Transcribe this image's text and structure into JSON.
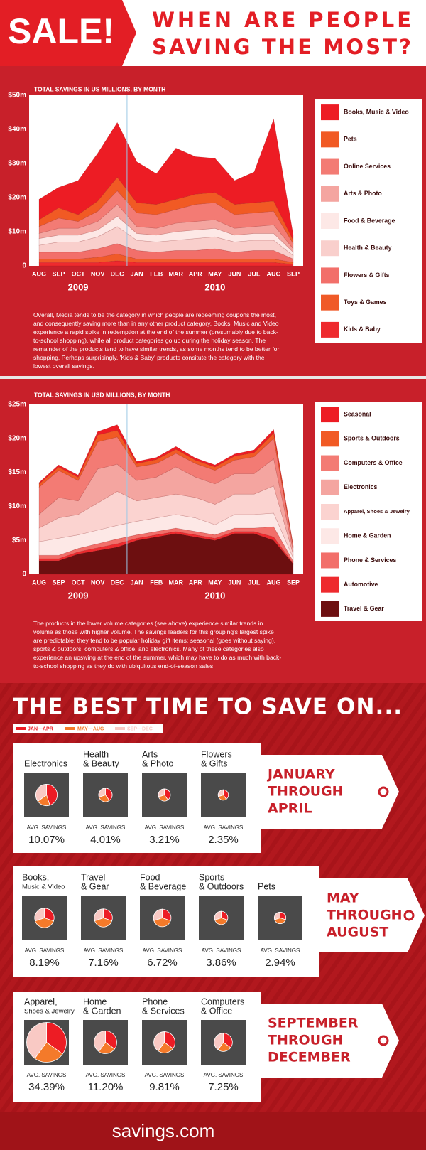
{
  "header": {
    "badge": "SALE!",
    "title_lines": [
      "WHEN ARE PEOPLE",
      "SAVING THE MOST?"
    ]
  },
  "chart_data": [
    {
      "type": "stacked_area",
      "title": "TOTAL SAVINGS IN US MILLIONS, BY MONTH",
      "categories": [
        "AUG",
        "SEP",
        "OCT",
        "NOV",
        "DEC",
        "JAN",
        "FEB",
        "MAR",
        "APR",
        "MAY",
        "JUN",
        "JUL",
        "AUG",
        "SEP"
      ],
      "years": [
        "2009",
        "2010"
      ],
      "ylim": [
        0,
        50
      ],
      "yticks": [
        0,
        {
          "value": 10,
          "label": "$10m"
        },
        {
          "value": 20,
          "label": "$20m"
        },
        {
          "value": 30,
          "label": "$30m"
        },
        {
          "value": 40,
          "label": "$40m"
        },
        {
          "value": 50,
          "label": "$50m"
        }
      ],
      "series": [
        {
          "name": "Books, Music & Video",
          "color": "#ed1c24",
          "values": [
            6,
            6,
            10,
            14,
            16,
            12,
            9,
            15,
            11,
            10,
            7,
            9,
            24,
            1.5
          ]
        },
        {
          "name": "Pets",
          "color": "#f15a24",
          "values": [
            2,
            3,
            2,
            3,
            4,
            3,
            3,
            3,
            3,
            3,
            3,
            3,
            3,
            1
          ]
        },
        {
          "name": "Online Services",
          "color": "#f37b74",
          "values": [
            2,
            3,
            2,
            3,
            4,
            4,
            4,
            4,
            5,
            5,
            4,
            4,
            4,
            1.5
          ]
        },
        {
          "name": "Arts & Photo",
          "color": "#f4a5a0",
          "values": [
            1.5,
            2,
            2,
            2.5,
            3.5,
            2,
            2,
            2.5,
            2.5,
            2.5,
            2,
            2,
            2.5,
            1
          ]
        },
        {
          "name": "Food & Beverage",
          "color": "#fde8e6",
          "values": [
            2,
            2,
            2,
            2,
            3,
            2,
            2,
            2.5,
            2.5,
            2.5,
            2,
            2,
            2,
            1
          ]
        },
        {
          "name": "Health & Beauty",
          "color": "#f9cfcc",
          "values": [
            2,
            3,
            3,
            3.5,
            5,
            3,
            3,
            3,
            3.5,
            3.5,
            3,
            3,
            3,
            1
          ]
        },
        {
          "name": "Flowers & Gifts",
          "color": "#f26f6a",
          "values": [
            2,
            2,
            2,
            2.5,
            3,
            2.5,
            2,
            2.5,
            2.5,
            3,
            2,
            2.5,
            2.5,
            1
          ]
        },
        {
          "name": "Toys & Games",
          "color": "#f05a28",
          "values": [
            1,
            1,
            1,
            1.5,
            2,
            1,
            1,
            1,
            1,
            1,
            1,
            1,
            1,
            0.5
          ]
        },
        {
          "name": "Kids & Baby",
          "color": "#ee2a2e",
          "values": [
            1,
            1,
            1,
            1,
            1.5,
            1,
            1,
            1,
            1,
            1,
            1,
            1,
            1,
            0.5
          ]
        }
      ],
      "description": "Overall, Media tends to be the category in which people are redeeming coupons the most, and consequently saving more than in any other product category.  Books, Music and Video experience a rapid spike in redemption at the end of the summer (presumably due to back-to-school shopping), while all product categories go up during the holiday season. The remainder of the products tend to have similar trends, as some months tend to be better for shopping. Perhaps surprisingly, 'Kids & Baby' products consitute the category with the lowest overall savings."
    },
    {
      "type": "stacked_area",
      "title": "TOTAL SAVINGS IN USD MILLIONS, BY MONTH",
      "categories": [
        "AUG",
        "SEP",
        "OCT",
        "NOV",
        "DEC",
        "JAN",
        "FEB",
        "MAR",
        "APR",
        "MAY",
        "JUN",
        "JUL",
        "AUG",
        "SEP"
      ],
      "years": [
        "2009",
        "2010"
      ],
      "ylim": [
        0,
        25
      ],
      "yticks": [
        0,
        {
          "value": 5,
          "label": "$5m"
        },
        {
          "value": 10,
          "label": "$10m"
        },
        {
          "value": 15,
          "label": "$15m"
        },
        {
          "value": 20,
          "label": "$20m"
        },
        {
          "value": 25,
          "label": "$25m"
        }
      ],
      "series": [
        {
          "name": "Seasonal",
          "color": "#ed1c24",
          "values": [
            0.2,
            0.3,
            0.3,
            0.5,
            0.8,
            0.3,
            0.3,
            0.4,
            0.3,
            0.3,
            0.3,
            0.4,
            0.5,
            0.1
          ]
        },
        {
          "name": "Sports & Outdoors",
          "color": "#f15a24",
          "values": [
            0.5,
            0.5,
            0.5,
            1,
            1,
            0.5,
            0.6,
            0.6,
            0.5,
            0.5,
            0.6,
            0.6,
            0.8,
            0.2
          ]
        },
        {
          "name": "Computers & Office",
          "color": "#f37b74",
          "values": [
            4,
            4,
            3,
            4,
            4,
            2,
            2,
            2,
            2,
            2,
            2,
            2.5,
            3,
            0.5
          ]
        },
        {
          "name": "Electronics",
          "color": "#f4a5a0",
          "values": [
            2,
            3,
            2,
            5,
            4,
            3,
            3,
            4,
            3,
            3,
            3,
            3,
            4,
            0.5
          ]
        },
        {
          "name": "Apparel, Shoes & Jewelry",
          "color": "#fbd3d0",
          "values": [
            2,
            3,
            3,
            4,
            5,
            3,
            3,
            3,
            3,
            3,
            3,
            3,
            4,
            0.5
          ]
        },
        {
          "name": "Home & Garden",
          "color": "#fde8e6",
          "values": [
            2,
            2.5,
            2,
            2,
            2,
            2,
            2,
            2,
            2,
            1.5,
            2,
            2,
            2,
            0.5
          ]
        },
        {
          "name": "Phone & Services",
          "color": "#f26f6a",
          "values": [
            0.5,
            0.5,
            0.5,
            0.6,
            0.7,
            0.5,
            0.5,
            0.5,
            0.5,
            0.5,
            0.5,
            0.5,
            1.5,
            0.3
          ]
        },
        {
          "name": "Automotive",
          "color": "#ee2a2e",
          "values": [
            0.3,
            0.3,
            0.3,
            0.4,
            0.5,
            0.3,
            0.3,
            0.3,
            0.3,
            0.3,
            0.3,
            0.3,
            0.5,
            0.1
          ]
        },
        {
          "name": "Travel & Gear",
          "color": "#6d0f10",
          "values": [
            2,
            2,
            3,
            3.5,
            4,
            5,
            5.5,
            6,
            5.5,
            5,
            6,
            6,
            5,
            1.5
          ]
        }
      ],
      "description": "The products in the lower volume categories (see above) experience similar trends in volume as those with higher volume. The savings leaders for this grouping's largest spike are predictable; they tend to be popular holiday gift items: seasonal (goes without saying), sports & outdoors, computers & office, and electronics. Many of these categories also experience an upswing at the end of the summer, which may have to do as much with back-to-school shopping as they do with ubiquitous end-of-season sales."
    }
  ],
  "best_time": {
    "title": "THE BEST TIME TO SAVE ON...",
    "legend": [
      {
        "label": "JAN—APR",
        "color": "#ed1c24"
      },
      {
        "label": "MAY—AUG",
        "color": "#f47a2a"
      },
      {
        "label": "SEP—DEC",
        "color": "#f9c9c4"
      }
    ],
    "avg_label": "AVG. SAVINGS",
    "groups": [
      {
        "title_lines": [
          "JANUARY",
          "THROUGH",
          "APRIL"
        ],
        "items": [
          {
            "name_lines": [
              "Electronics"
            ],
            "shares": [
              45,
              20,
              35
            ],
            "avg_savings": 10.07,
            "avg_savings_label": "10.07%"
          },
          {
            "name_lines": [
              "Health",
              "& Beauty"
            ],
            "shares": [
              40,
              30,
              30
            ],
            "avg_savings": 4.01,
            "avg_savings_label": "4.01%"
          },
          {
            "name_lines": [
              "Arts",
              "& Photo"
            ],
            "shares": [
              40,
              30,
              30
            ],
            "avg_savings": 3.21,
            "avg_savings_label": "3.21%"
          },
          {
            "name_lines": [
              "Flowers",
              "& Gifts"
            ],
            "shares": [
              40,
              30,
              30
            ],
            "avg_savings": 2.35,
            "avg_savings_label": "2.35%"
          }
        ]
      },
      {
        "title_lines": [
          "MAY",
          "THROUGH",
          "AUGUST"
        ],
        "items": [
          {
            "name_lines": [
              "Books,",
              "Music & Video"
            ],
            "shares": [
              30,
              40,
              30
            ],
            "avg_savings": 8.19,
            "avg_savings_label": "8.19%"
          },
          {
            "name_lines": [
              "Travel",
              "& Gear"
            ],
            "shares": [
              30,
              40,
              30
            ],
            "avg_savings": 7.16,
            "avg_savings_label": "7.16%"
          },
          {
            "name_lines": [
              "Food",
              "& Beverage"
            ],
            "shares": [
              30,
              40,
              30
            ],
            "avg_savings": 6.72,
            "avg_savings_label": "6.72%"
          },
          {
            "name_lines": [
              "Sports",
              "& Outdoors"
            ],
            "shares": [
              30,
              40,
              30
            ],
            "avg_savings": 3.86,
            "avg_savings_label": "3.86%"
          },
          {
            "name_lines": [
              "Pets"
            ],
            "shares": [
              30,
              40,
              30
            ],
            "avg_savings": 2.94,
            "avg_savings_label": "2.94%"
          }
        ]
      },
      {
        "title_lines": [
          "SEPTEMBER",
          "THROUGH",
          "DECEMBER"
        ],
        "items": [
          {
            "name_lines": [
              "Apparel,",
              "Shoes & Jewelry"
            ],
            "shares": [
              35,
              25,
              40
            ],
            "avg_savings": 34.39,
            "avg_savings_label": "34.39%"
          },
          {
            "name_lines": [
              "Home",
              "& Garden"
            ],
            "shares": [
              35,
              25,
              40
            ],
            "avg_savings": 11.2,
            "avg_savings_label": "11.20%"
          },
          {
            "name_lines": [
              "Phone",
              "& Services"
            ],
            "shares": [
              35,
              25,
              40
            ],
            "avg_savings": 9.81,
            "avg_savings_label": "9.81%"
          },
          {
            "name_lines": [
              "Computers",
              "& Office"
            ],
            "shares": [
              35,
              25,
              40
            ],
            "avg_savings": 7.25,
            "avg_savings_label": "7.25%"
          }
        ]
      }
    ]
  },
  "footer": {
    "brand": "savings.com"
  }
}
